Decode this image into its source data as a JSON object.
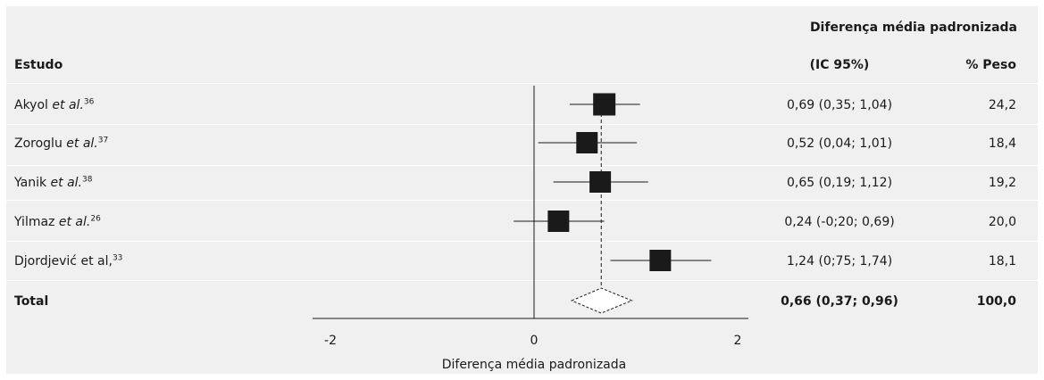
{
  "header": {
    "group_title": "Diferença média padronizada",
    "col_study": "Estudo",
    "col_ci": "(IC 95%)",
    "col_weight": "% Peso"
  },
  "rows": [
    {
      "name": "Akyol",
      "etal": "et al.",
      "ref": "36",
      "ci_text": "0,69 (0,35; 1,04)",
      "weight": "24,2"
    },
    {
      "name": "Zoroglu",
      "etal": "et al.",
      "ref": "37",
      "ci_text": "0,52 (0,04; 1,01)",
      "weight": "18,4"
    },
    {
      "name": "Yanik",
      "etal": "et al.",
      "ref": "38",
      "ci_text": "0,65 (0,19; 1,12)",
      "weight": "19,2"
    },
    {
      "name": "Yilmaz",
      "etal": "et al.",
      "ref": "26",
      "ci_text": "0,24 (-0;20; 0,69)",
      "weight": "20,0"
    },
    {
      "name": "Djordjević et al,",
      "etal": "",
      "ref": "33",
      "ci_text": "1,24 (0;75; 1,74)",
      "weight": "18,1"
    }
  ],
  "total": {
    "label": "Total",
    "ci_text": "0,66 (0,37; 0,96)",
    "weight": "100,0"
  },
  "chart_data": {
    "type": "forest",
    "studies": [
      {
        "label": "Akyol et al.",
        "estimate": 0.69,
        "ci_low": 0.35,
        "ci_high": 1.04,
        "weight": 24.2
      },
      {
        "label": "Zoroglu et al.",
        "estimate": 0.52,
        "ci_low": 0.04,
        "ci_high": 1.01,
        "weight": 18.4
      },
      {
        "label": "Yanik et al.",
        "estimate": 0.65,
        "ci_low": 0.19,
        "ci_high": 1.12,
        "weight": 19.2
      },
      {
        "label": "Yilmaz et al.",
        "estimate": 0.24,
        "ci_low": -0.2,
        "ci_high": 0.69,
        "weight": 20.0
      },
      {
        "label": "Djordjević et al,",
        "estimate": 1.24,
        "ci_low": 0.75,
        "ci_high": 1.74,
        "weight": 18.1
      }
    ],
    "pooled": {
      "label": "Total",
      "estimate": 0.66,
      "ci_low": 0.37,
      "ci_high": 0.96,
      "weight": 100.0
    },
    "xlim": [
      -2,
      2
    ],
    "xticks": [
      -2,
      0,
      2
    ],
    "xlabel": "Diferença média padronizada",
    "null_line": 0,
    "pooled_line": "dashed"
  }
}
